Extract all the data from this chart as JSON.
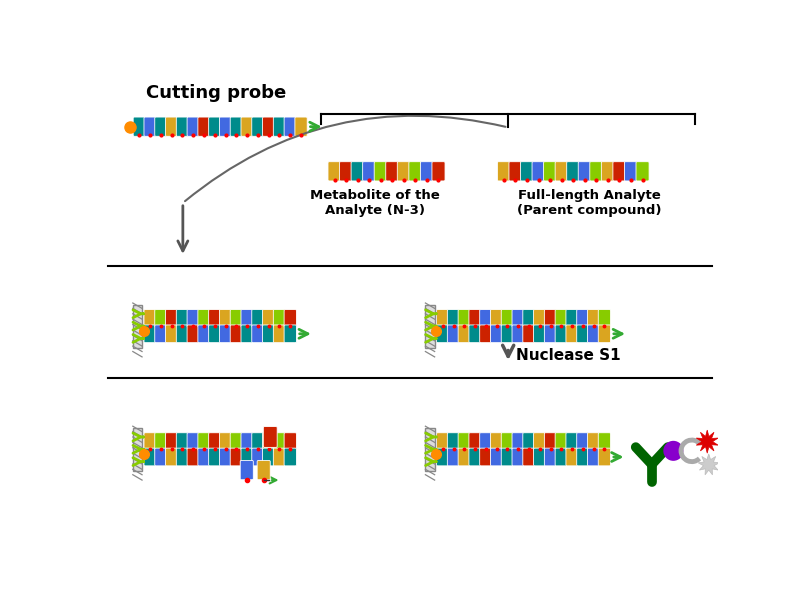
{
  "title": "Cutting probe",
  "nuclease_label": "Nuclease S1",
  "metabolite_label": "Metabolite of the\nAnalyte (N-3)",
  "full_length_label": "Full-length Analyte\n(Parent compound)",
  "colors": {
    "teal": "#008B8B",
    "blue": "#4169E1",
    "yellow": "#DAA520",
    "red": "#CC2200",
    "green": "#33AA33",
    "lime": "#88CC00",
    "orange": "#FF8C00",
    "dark_green": "#006400",
    "purple": "#8800CC",
    "gray": "#AAAAAA",
    "white": "#FFFFFF",
    "black": "#000000",
    "light_gray": "#CCCCCC"
  },
  "bg_color": "#FFFFFF"
}
